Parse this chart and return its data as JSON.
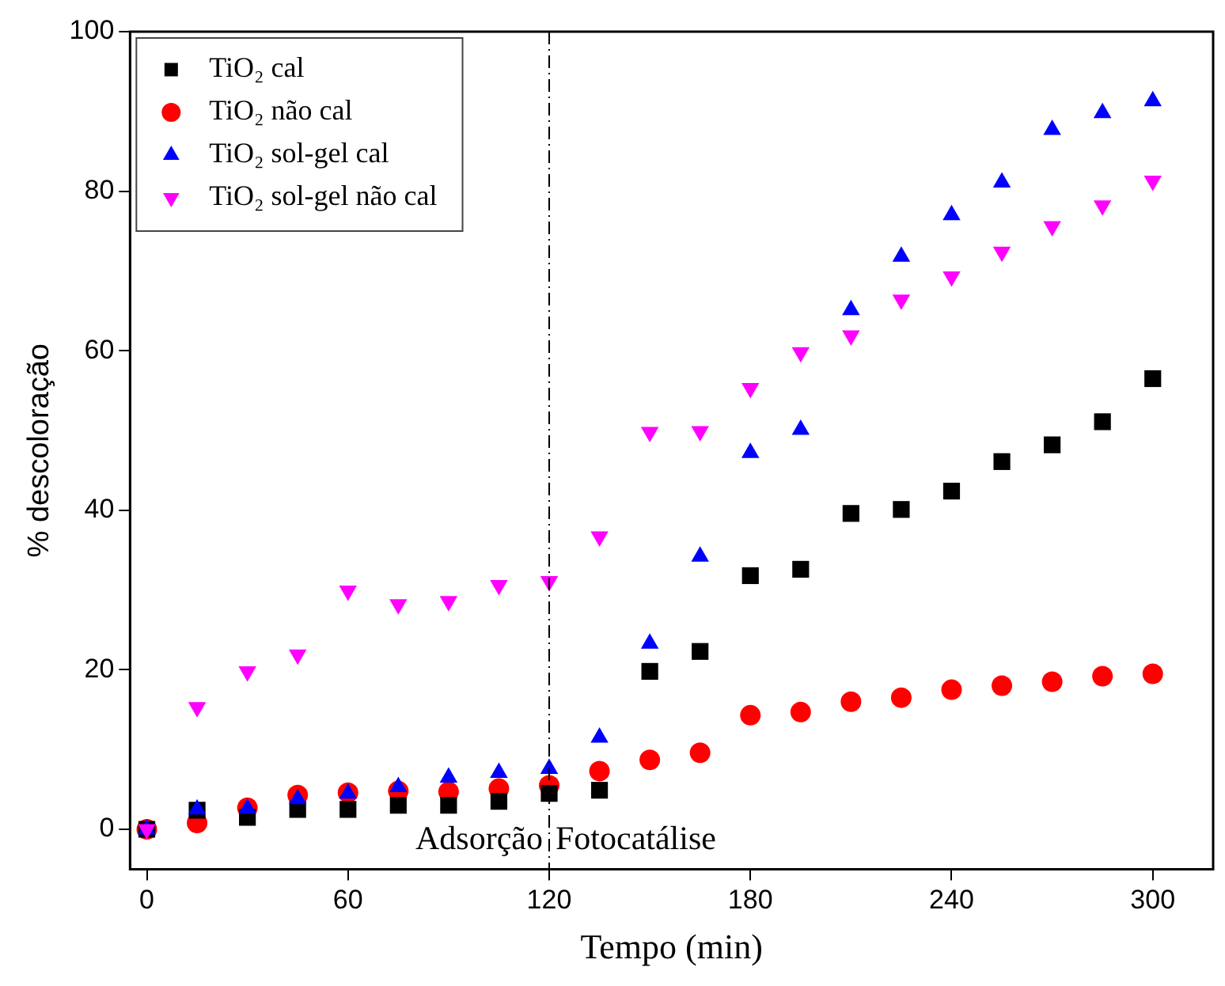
{
  "chart_data": {
    "type": "scatter",
    "xlabel": "Tempo (min)",
    "ylabel": "% descoloração",
    "x": [
      0,
      15,
      30,
      45,
      60,
      75,
      90,
      105,
      120,
      135,
      150,
      165,
      180,
      195,
      210,
      225,
      240,
      255,
      270,
      285,
      300
    ],
    "series": [
      {
        "name": "TiO₂ cal",
        "color": "#000000",
        "marker": "square",
        "values": [
          0,
          2.4,
          1.5,
          2.5,
          2.5,
          3,
          3,
          3.5,
          4.5,
          4.9,
          19.8,
          22.3,
          31.8,
          32.6,
          39.6,
          40.1,
          42.4,
          46.1,
          48.2,
          51.1,
          56.5
        ]
      },
      {
        "name": "TiO₂ não cal",
        "color": "#ff0000",
        "marker": "circle",
        "values": [
          0,
          0.8,
          2.7,
          4.3,
          4.6,
          4.8,
          4.7,
          5.1,
          5.5,
          7.3,
          8.7,
          9.6,
          14.3,
          14.7,
          16.0,
          16.5,
          17.5,
          18.0,
          18.5,
          19.2,
          19.5
        ]
      },
      {
        "name": "TiO₂ sol-gel cal",
        "color": "#0000ff",
        "marker": "triangle",
        "values": [
          0,
          2.5,
          2.6,
          3.8,
          4.5,
          5.3,
          6.5,
          7.1,
          7.6,
          11.5,
          23.3,
          34.2,
          47.2,
          50.1,
          65.1,
          71.8,
          77.0,
          81.1,
          87.7,
          89.8,
          91.3
        ]
      },
      {
        "name": "TiO₂ sol-gel não cal",
        "color": "#ff00ff",
        "marker": "triangle_down",
        "values": [
          0,
          15.3,
          19.8,
          21.9,
          29.9,
          28.2,
          28.6,
          30.6,
          31.1,
          36.7,
          49.8,
          49.9,
          55.3,
          59.8,
          61.9,
          66.4,
          69.3,
          72.4,
          75.6,
          78.2,
          81.3
        ]
      }
    ],
    "xlim": [
      -5,
      318
    ],
    "xticks": [
      0,
      60,
      120,
      180,
      240,
      300
    ],
    "ylim": [
      -5,
      100
    ],
    "yticks": [
      0,
      20,
      40,
      60,
      80,
      100
    ],
    "grid": false,
    "legend": "top left",
    "ref_lines": [
      {
        "axis": "x",
        "value": 120,
        "line_style": "dashdot",
        "color": "#000000"
      }
    ],
    "annotations": [
      "Adsorção",
      "Fotocatálise"
    ]
  }
}
